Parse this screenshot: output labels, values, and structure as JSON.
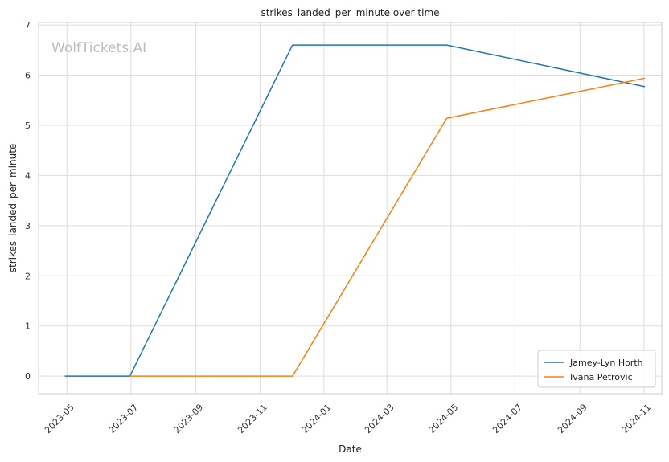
{
  "chart_data": {
    "type": "line",
    "title": "strikes_landed_per_minute over time",
    "xlabel": "Date",
    "ylabel": "strikes_landed_per_minute",
    "watermark": "WolfTickets.AI",
    "x_ticks": [
      "2023-05",
      "2023-07",
      "2023-09",
      "2023-11",
      "2024-01",
      "2024-03",
      "2024-05",
      "2024-07",
      "2024-09",
      "2024-11"
    ],
    "y_ticks": [
      0,
      1,
      2,
      3,
      4,
      5,
      6,
      7
    ],
    "xlim": [
      "2023-04-04",
      "2024-11-18"
    ],
    "ylim": [
      -0.35,
      7.05
    ],
    "grid": true,
    "legend_position": "bottom-right",
    "series": [
      {
        "name": "Jamey-Lyn Horth",
        "color": "#1f77b4",
        "points": [
          {
            "x": "2023-04-29",
            "y": 0
          },
          {
            "x": "2023-06-30",
            "y": 0
          },
          {
            "x": "2023-12-02",
            "y": 6.6
          },
          {
            "x": "2024-04-27",
            "y": 6.6
          },
          {
            "x": "2024-11-02",
            "y": 5.77
          }
        ]
      },
      {
        "name": "Ivana Petrovic",
        "color": "#ff7f0e",
        "points": [
          {
            "x": "2023-06-30",
            "y": 0
          },
          {
            "x": "2023-12-02",
            "y": 0
          },
          {
            "x": "2024-04-27",
            "y": 5.14
          },
          {
            "x": "2024-11-02",
            "y": 5.94
          }
        ]
      }
    ]
  }
}
